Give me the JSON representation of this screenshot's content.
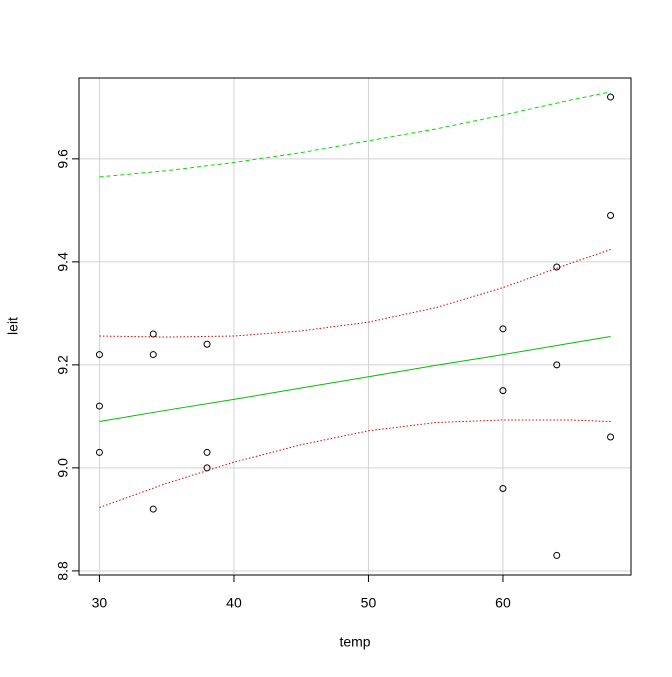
{
  "chart_data": {
    "type": "scatter",
    "x_label": "temp",
    "y_label": "leit",
    "xlim": [
      28.48,
      69.52
    ],
    "ylim": [
      8.792,
      9.757
    ],
    "xticks": [
      30,
      40,
      50,
      60
    ],
    "yticks": [
      {
        "value": 8.8,
        "label": "8.8"
      },
      {
        "value": 9.0,
        "label": "9.0"
      },
      {
        "value": 9.2,
        "label": "9.2"
      },
      {
        "value": 9.4,
        "label": "9.4"
      },
      {
        "value": 9.6,
        "label": "9.6"
      }
    ],
    "grid": true,
    "series": [
      {
        "style": "points",
        "color": "#000000",
        "x": [
          30,
          30,
          30,
          34,
          34,
          34,
          38,
          38,
          38,
          60,
          60,
          60,
          64,
          64,
          64,
          68,
          68,
          68
        ],
        "values": [
          9.22,
          9.12,
          9.03,
          9.26,
          9.22,
          8.92,
          9.24,
          9.03,
          9.0,
          9.27,
          9.15,
          8.96,
          9.39,
          9.2,
          8.83,
          9.72,
          9.49,
          9.06
        ]
      },
      {
        "style": "solid",
        "color": "#00c000",
        "x": [
          30,
          35,
          40,
          45,
          50,
          55,
          60,
          65,
          68
        ],
        "values": [
          9.09,
          9.112,
          9.133,
          9.155,
          9.177,
          9.199,
          9.22,
          9.242,
          9.255
        ]
      },
      {
        "style": "dotted",
        "color": "#e00000",
        "x": [
          30,
          35,
          40,
          45,
          50,
          55,
          60,
          65,
          68
        ],
        "values": [
          9.256,
          9.254,
          9.256,
          9.266,
          9.283,
          9.311,
          9.35,
          9.397,
          9.424
        ]
      },
      {
        "style": "dotted",
        "color": "#e00000",
        "x": [
          30,
          35,
          40,
          45,
          50,
          55,
          60,
          65,
          68
        ],
        "values": [
          8.923,
          8.97,
          9.011,
          9.045,
          9.072,
          9.088,
          9.093,
          9.093,
          9.09
        ]
      },
      {
        "style": "dashed",
        "color": "#00e000",
        "x": [
          30,
          35,
          40,
          45,
          50,
          55,
          60,
          65,
          68
        ],
        "values": [
          9.565,
          9.577,
          9.593,
          9.612,
          9.635,
          9.658,
          9.685,
          9.714,
          9.73
        ]
      }
    ]
  }
}
